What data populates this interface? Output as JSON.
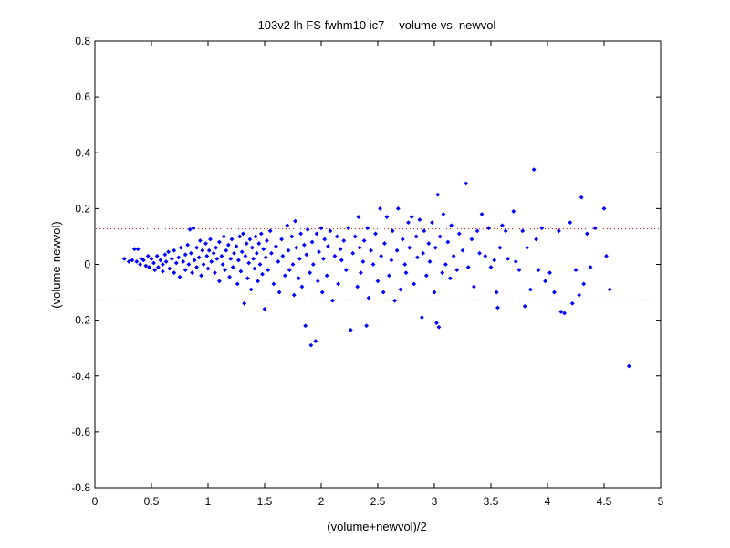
{
  "chart_data": {
    "type": "scatter",
    "title": "103v2 lh FS fwhm10 ic7 -- volume vs. newvol",
    "xlabel": "(volume+newvol)/2",
    "ylabel": "(volume-newvol)",
    "xlim": [
      0,
      5
    ],
    "ylim": [
      -0.8,
      0.8
    ],
    "xticks": [
      0,
      0.5,
      1,
      1.5,
      2,
      2.5,
      3,
      3.5,
      4,
      4.5,
      5
    ],
    "yticks": [
      -0.8,
      -0.6,
      -0.4,
      -0.2,
      0,
      0.2,
      0.4,
      0.6,
      0.8
    ],
    "xtick_labels": [
      "0",
      "0.5",
      "1",
      "1.5",
      "2",
      "2.5",
      "3",
      "3.5",
      "4",
      "4.5",
      "5"
    ],
    "ytick_labels": [
      "-0.8",
      "-0.6",
      "-0.4",
      "-0.2",
      "0",
      "0.2",
      "0.4",
      "0.6",
      "0.8"
    ],
    "grid": false,
    "marker_color": "#0000ff",
    "reference_line_color": "#ff0000",
    "reference_lines": [
      0.127,
      -0.127
    ],
    "points": [
      [
        0.26,
        0.02
      ],
      [
        0.3,
        0.01
      ],
      [
        0.33,
        0.015
      ],
      [
        0.35,
        0.055
      ],
      [
        0.37,
        0.01
      ],
      [
        0.38,
        0.055
      ],
      [
        0.4,
        0.0
      ],
      [
        0.41,
        0.02
      ],
      [
        0.43,
        0.015
      ],
      [
        0.45,
        -0.005
      ],
      [
        0.47,
        0.03
      ],
      [
        0.48,
        -0.01
      ],
      [
        0.5,
        0.02
      ],
      [
        0.52,
        0.005
      ],
      [
        0.53,
        -0.02
      ],
      [
        0.55,
        0.03
      ],
      [
        0.56,
        -0.01
      ],
      [
        0.58,
        0.015
      ],
      [
        0.6,
        0.0
      ],
      [
        0.6,
        -0.025
      ],
      [
        0.62,
        0.035
      ],
      [
        0.63,
        0.01
      ],
      [
        0.65,
        0.045
      ],
      [
        0.66,
        -0.015
      ],
      [
        0.68,
        0.02
      ],
      [
        0.7,
        0.05
      ],
      [
        0.7,
        -0.03
      ],
      [
        0.72,
        0.005
      ],
      [
        0.74,
        0.025
      ],
      [
        0.75,
        -0.045
      ],
      [
        0.76,
        0.06
      ],
      [
        0.78,
        0.01
      ],
      [
        0.8,
        0.035
      ],
      [
        0.8,
        -0.02
      ],
      [
        0.82,
        0.07
      ],
      [
        0.83,
        0.0
      ],
      [
        0.84,
        0.125
      ],
      [
        0.85,
        0.04
      ],
      [
        0.86,
        -0.03
      ],
      [
        0.87,
        0.13
      ],
      [
        0.88,
        0.015
      ],
      [
        0.9,
        0.06
      ],
      [
        0.9,
        -0.01
      ],
      [
        0.92,
        0.025
      ],
      [
        0.93,
        0.085
      ],
      [
        0.94,
        -0.04
      ],
      [
        0.95,
        0.05
      ],
      [
        0.96,
        0.0
      ],
      [
        0.98,
        0.075
      ],
      [
        0.99,
        0.03
      ],
      [
        1.0,
        -0.015
      ],
      [
        1.01,
        0.05
      ],
      [
        1.02,
        0.09
      ],
      [
        1.03,
        0.01
      ],
      [
        1.05,
        0.04
      ],
      [
        1.06,
        -0.03
      ],
      [
        1.07,
        0.06
      ],
      [
        1.08,
        0.02
      ],
      [
        1.1,
        -0.06
      ],
      [
        1.1,
        0.08
      ],
      [
        1.12,
        0.03
      ],
      [
        1.13,
        0.0
      ],
      [
        1.14,
        0.1
      ],
      [
        1.15,
        -0.02
      ],
      [
        1.16,
        0.05
      ],
      [
        1.18,
        0.07
      ],
      [
        1.19,
        -0.045
      ],
      [
        1.2,
        0.02
      ],
      [
        1.21,
        0.09
      ],
      [
        1.22,
        -0.01
      ],
      [
        1.23,
        0.04
      ],
      [
        1.25,
        0.065
      ],
      [
        1.26,
        -0.07
      ],
      [
        1.27,
        0.015
      ],
      [
        1.28,
        0.1
      ],
      [
        1.29,
        -0.025
      ],
      [
        1.3,
        0.045
      ],
      [
        1.31,
        0.11
      ],
      [
        1.32,
        -0.14
      ],
      [
        1.33,
        0.03
      ],
      [
        1.34,
        0.075
      ],
      [
        1.35,
        -0.05
      ],
      [
        1.36,
        0.005
      ],
      [
        1.37,
        0.09
      ],
      [
        1.38,
        -0.09
      ],
      [
        1.39,
        0.06
      ],
      [
        1.4,
        0.02
      ],
      [
        1.41,
        -0.015
      ],
      [
        1.42,
        0.1
      ],
      [
        1.43,
        0.04
      ],
      [
        1.44,
        -0.06
      ],
      [
        1.45,
        0.075
      ],
      [
        1.46,
        0.0
      ],
      [
        1.47,
        0.11
      ],
      [
        1.48,
        -0.035
      ],
      [
        1.49,
        0.055
      ],
      [
        1.5,
        -0.16
      ],
      [
        1.51,
        0.025
      ],
      [
        1.52,
        0.085
      ],
      [
        1.53,
        -0.02
      ],
      [
        1.55,
        0.12
      ],
      [
        1.56,
        0.04
      ],
      [
        1.58,
        -0.07
      ],
      [
        1.6,
        0.065
      ],
      [
        1.62,
        0.01
      ],
      [
        1.63,
        -0.1
      ],
      [
        1.65,
        0.09
      ],
      [
        1.66,
        0.03
      ],
      [
        1.68,
        -0.04
      ],
      [
        1.7,
        0.14
      ],
      [
        1.71,
        0.05
      ],
      [
        1.72,
        -0.02
      ],
      [
        1.74,
        0.1
      ],
      [
        1.75,
        0.0
      ],
      [
        1.76,
        -0.11
      ],
      [
        1.77,
        0.155
      ],
      [
        1.78,
        0.06
      ],
      [
        1.8,
        -0.05
      ],
      [
        1.81,
        0.02
      ],
      [
        1.82,
        0.11
      ],
      [
        1.83,
        -0.08
      ],
      [
        1.85,
        0.07
      ],
      [
        1.86,
        -0.22
      ],
      [
        1.87,
        0.035
      ],
      [
        1.88,
        0.125
      ],
      [
        1.9,
        -0.03
      ],
      [
        1.91,
        -0.29
      ],
      [
        1.92,
        0.08
      ],
      [
        1.93,
        0.0
      ],
      [
        1.95,
        -0.275
      ],
      [
        1.96,
        0.11
      ],
      [
        1.97,
        -0.06
      ],
      [
        1.98,
        0.045
      ],
      [
        2.0,
        0.13
      ],
      [
        2.01,
        -0.1
      ],
      [
        2.02,
        0.02
      ],
      [
        2.03,
        0.09
      ],
      [
        2.05,
        -0.04
      ],
      [
        2.06,
        0.065
      ],
      [
        2.08,
        0.12
      ],
      [
        2.1,
        -0.13
      ],
      [
        2.12,
        0.03
      ],
      [
        2.14,
        0.1
      ],
      [
        2.15,
        -0.07
      ],
      [
        2.17,
        0.055
      ],
      [
        2.18,
        0.015
      ],
      [
        2.2,
        0.085
      ],
      [
        2.22,
        -0.02
      ],
      [
        2.24,
        0.13
      ],
      [
        2.26,
        -0.235
      ],
      [
        2.28,
        0.04
      ],
      [
        2.3,
        0.1
      ],
      [
        2.32,
        -0.08
      ],
      [
        2.33,
        0.17
      ],
      [
        2.34,
        0.06
      ],
      [
        2.35,
        -0.03
      ],
      [
        2.37,
        0.01
      ],
      [
        2.38,
        0.085
      ],
      [
        2.4,
        -0.22
      ],
      [
        2.41,
        0.13
      ],
      [
        2.42,
        -0.12
      ],
      [
        2.44,
        0.05
      ],
      [
        2.46,
        0.0
      ],
      [
        2.48,
        0.11
      ],
      [
        2.5,
        -0.06
      ],
      [
        2.52,
        0.2
      ],
      [
        2.53,
        0.03
      ],
      [
        2.55,
        -0.1
      ],
      [
        2.56,
        0.075
      ],
      [
        2.58,
        0.17
      ],
      [
        2.6,
        -0.04
      ],
      [
        2.62,
        0.015
      ],
      [
        2.63,
        0.12
      ],
      [
        2.65,
        -0.13
      ],
      [
        2.67,
        0.05
      ],
      [
        2.68,
        0.2
      ],
      [
        2.7,
        -0.09
      ],
      [
        2.72,
        0.09
      ],
      [
        2.74,
        0.0
      ],
      [
        2.75,
        -0.03
      ],
      [
        2.77,
        0.15
      ],
      [
        2.78,
        0.06
      ],
      [
        2.8,
        0.17
      ],
      [
        2.82,
        -0.07
      ],
      [
        2.84,
        0.1
      ],
      [
        2.85,
        0.025
      ],
      [
        2.87,
        0.16
      ],
      [
        2.89,
        -0.19
      ],
      [
        2.9,
        0.04
      ],
      [
        2.91,
        0.12
      ],
      [
        2.93,
        -0.04
      ],
      [
        2.95,
        0.075
      ],
      [
        2.96,
        0.01
      ],
      [
        2.98,
        0.15
      ],
      [
        3.0,
        -0.1
      ],
      [
        3.01,
        0.06
      ],
      [
        3.02,
        -0.21
      ],
      [
        3.03,
        0.25
      ],
      [
        3.04,
        -0.225
      ],
      [
        3.05,
        0.1
      ],
      [
        3.07,
        -0.03
      ],
      [
        3.08,
        0.18
      ],
      [
        3.1,
        0.0
      ],
      [
        3.12,
        0.08
      ],
      [
        3.14,
        -0.05
      ],
      [
        3.15,
        0.14
      ],
      [
        3.17,
        0.03
      ],
      [
        3.2,
        -0.02
      ],
      [
        3.22,
        0.11
      ],
      [
        3.25,
        0.05
      ],
      [
        3.28,
        0.29
      ],
      [
        3.3,
        -0.01
      ],
      [
        3.33,
        0.09
      ],
      [
        3.35,
        -0.08
      ],
      [
        3.38,
        0.12
      ],
      [
        3.4,
        0.04
      ],
      [
        3.42,
        0.18
      ],
      [
        3.45,
        0.03
      ],
      [
        3.48,
        0.13
      ],
      [
        3.5,
        -0.01
      ],
      [
        3.53,
        0.015
      ],
      [
        3.55,
        -0.1
      ],
      [
        3.56,
        -0.155
      ],
      [
        3.58,
        0.06
      ],
      [
        3.6,
        0.14
      ],
      [
        3.63,
        0.12
      ],
      [
        3.65,
        0.02
      ],
      [
        3.7,
        0.19
      ],
      [
        3.72,
        0.01
      ],
      [
        3.75,
        -0.02
      ],
      [
        3.78,
        0.12
      ],
      [
        3.8,
        -0.15
      ],
      [
        3.82,
        0.06
      ],
      [
        3.85,
        -0.09
      ],
      [
        3.88,
        0.34
      ],
      [
        3.9,
        0.09
      ],
      [
        3.92,
        -0.02
      ],
      [
        3.95,
        0.13
      ],
      [
        3.98,
        -0.06
      ],
      [
        4.02,
        -0.03
      ],
      [
        4.06,
        -0.1
      ],
      [
        4.1,
        0.12
      ],
      [
        4.12,
        -0.17
      ],
      [
        4.15,
        -0.175
      ],
      [
        4.2,
        0.15
      ],
      [
        4.22,
        -0.14
      ],
      [
        4.25,
        -0.02
      ],
      [
        4.28,
        -0.11
      ],
      [
        4.3,
        0.24
      ],
      [
        4.32,
        -0.07
      ],
      [
        4.35,
        0.11
      ],
      [
        4.38,
        -0.01
      ],
      [
        4.42,
        0.13
      ],
      [
        4.5,
        0.2
      ],
      [
        4.52,
        0.03
      ],
      [
        4.55,
        -0.09
      ],
      [
        4.72,
        -0.365
      ]
    ]
  }
}
